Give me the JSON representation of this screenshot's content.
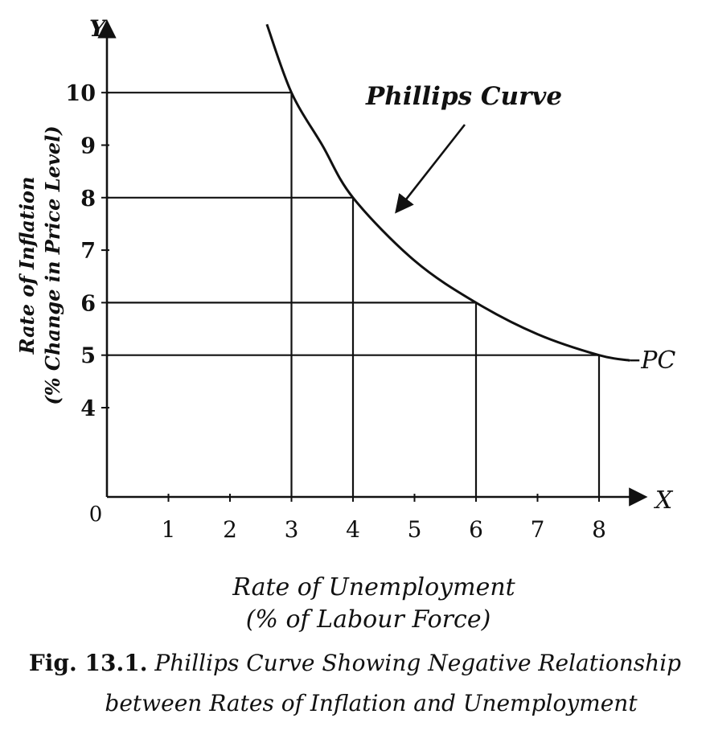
{
  "chart_data": {
    "type": "line",
    "title": "Phillips Curve",
    "curve_label": "Phillips Curve",
    "curve_end_label": "PC",
    "x_axis_letter": "X",
    "y_axis_letter": "Y",
    "origin_label": "0",
    "xlabel_line1": "Rate of Unemployment",
    "xlabel_line2": "(% of Labour Force)",
    "ylabel_line1": "Rate of Inflation",
    "ylabel_line2": "(% Change in Price Level)",
    "x_ticks": [
      "1",
      "2",
      "3",
      "4",
      "5",
      "6",
      "7",
      "8"
    ],
    "y_ticks": [
      "4",
      "5",
      "6",
      "7",
      "8",
      "9",
      "10"
    ],
    "xlim": [
      0,
      8.6
    ],
    "ylim_baseline": 2.3,
    "ylim_top": 11.2,
    "points": [
      {
        "x": 2.6,
        "y": 11.3
      },
      {
        "x": 3.0,
        "y": 10.0
      },
      {
        "x": 3.5,
        "y": 9.0
      },
      {
        "x": 4.0,
        "y": 8.0
      },
      {
        "x": 5.0,
        "y": 6.8
      },
      {
        "x": 6.0,
        "y": 6.0
      },
      {
        "x": 7.0,
        "y": 5.4
      },
      {
        "x": 8.0,
        "y": 5.0
      },
      {
        "x": 8.5,
        "y": 4.9
      }
    ],
    "guides": [
      {
        "x": 3,
        "y": 10
      },
      {
        "x": 4,
        "y": 8
      },
      {
        "x": 6,
        "y": 6
      },
      {
        "x": 8,
        "y": 5
      }
    ]
  },
  "caption": {
    "label": "Fig. 13.1.",
    "line1": "Phillips Curve Showing Negative Relationship",
    "line2": "between Rates of Inflation and Unemployment"
  }
}
